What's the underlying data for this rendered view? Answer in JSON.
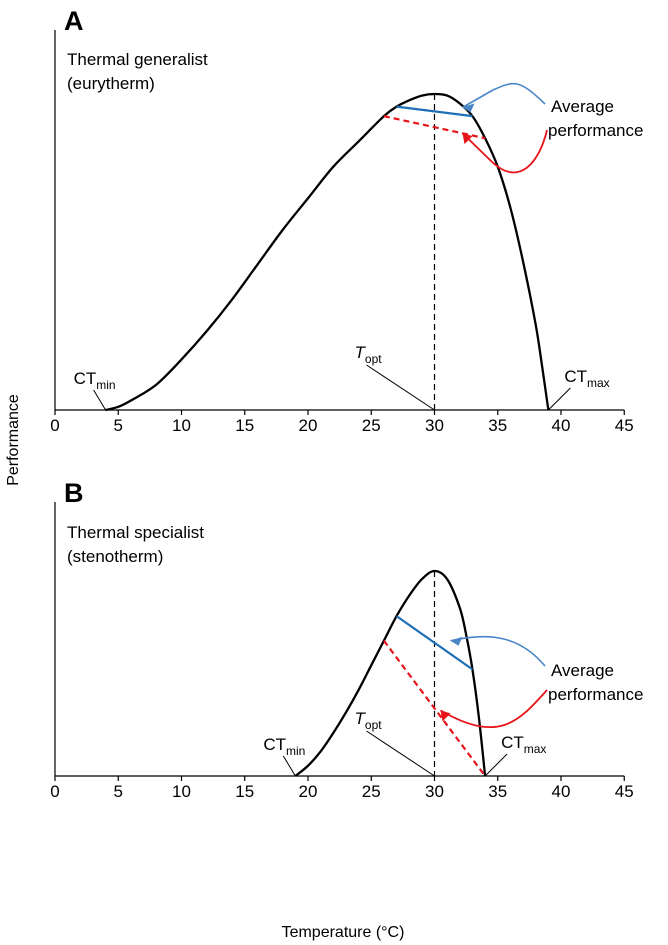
{
  "figure": {
    "ylabel": "Performance",
    "xlabel": "Temperature (°C)",
    "avg_label": [
      "Average",
      "performance"
    ],
    "colors": {
      "curve": "#000000",
      "blue": "#1f6fb7",
      "red": "#e8141b",
      "blue_arrow": "#4a86c5",
      "dash": "#000000"
    }
  },
  "chart_data": [
    {
      "type": "line",
      "panel": "A",
      "title": [
        "Thermal generalist",
        "(eurytherm)"
      ],
      "xlabel": "",
      "ylabel": "Performance",
      "xlim": [
        0,
        45
      ],
      "ylim": [
        0,
        1
      ],
      "xticks": [
        "0",
        "5",
        "10",
        "15",
        "20",
        "25",
        "30",
        "35",
        "40",
        "45"
      ],
      "grid": false,
      "ct_min": 4,
      "t_opt": 30,
      "ct_max": 39,
      "curve": {
        "x": [
          4,
          5,
          6,
          8,
          10,
          12,
          14,
          16,
          18,
          20,
          22,
          24,
          26,
          27,
          28,
          29,
          30,
          31,
          32,
          33,
          34,
          35,
          36,
          37,
          38,
          38.5,
          39
        ],
        "y": [
          0,
          0.01,
          0.03,
          0.08,
          0.16,
          0.25,
          0.35,
          0.46,
          0.57,
          0.67,
          0.77,
          0.85,
          0.93,
          0.96,
          0.98,
          0.995,
          1.0,
          0.995,
          0.97,
          0.93,
          0.86,
          0.77,
          0.64,
          0.47,
          0.27,
          0.14,
          0
        ]
      },
      "blue_segment": {
        "x": [
          27,
          33
        ],
        "y": [
          0.96,
          0.93
        ]
      },
      "red_segment": {
        "x": [
          26,
          34
        ],
        "y": [
          0.93,
          0.86
        ]
      },
      "labels": {
        "ct_min": [
          "CT",
          "min"
        ],
        "t_opt": [
          "T",
          "opt"
        ],
        "ct_max": [
          "CT",
          "max"
        ]
      }
    },
    {
      "type": "line",
      "panel": "B",
      "title": [
        "Thermal specialist",
        "(stenotherm)"
      ],
      "xlabel": "Temperature (°C)",
      "ylabel": "Performance",
      "xlim": [
        0,
        45
      ],
      "ylim": [
        0,
        1
      ],
      "xticks": [
        "0",
        "5",
        "10",
        "15",
        "20",
        "25",
        "30",
        "35",
        "40",
        "45"
      ],
      "grid": false,
      "ct_min": 19,
      "t_opt": 30,
      "ct_max": 34,
      "curve": {
        "x": [
          19,
          20,
          21,
          22,
          23,
          24,
          25,
          26,
          27,
          28,
          29,
          30,
          31,
          32,
          32.5,
          33,
          33.5,
          34
        ],
        "y": [
          0,
          0.05,
          0.12,
          0.21,
          0.31,
          0.42,
          0.54,
          0.66,
          0.78,
          0.88,
          0.96,
          1.0,
          0.96,
          0.82,
          0.69,
          0.52,
          0.29,
          0
        ]
      },
      "blue_segment": {
        "x": [
          27,
          33
        ],
        "y": [
          0.78,
          0.52
        ]
      },
      "red_segment": {
        "x": [
          26,
          34
        ],
        "y": [
          0.66,
          0.0
        ]
      },
      "labels": {
        "ct_min": [
          "CT",
          "min"
        ],
        "t_opt": [
          "T",
          "opt"
        ],
        "ct_max": [
          "CT",
          "max"
        ]
      }
    }
  ]
}
